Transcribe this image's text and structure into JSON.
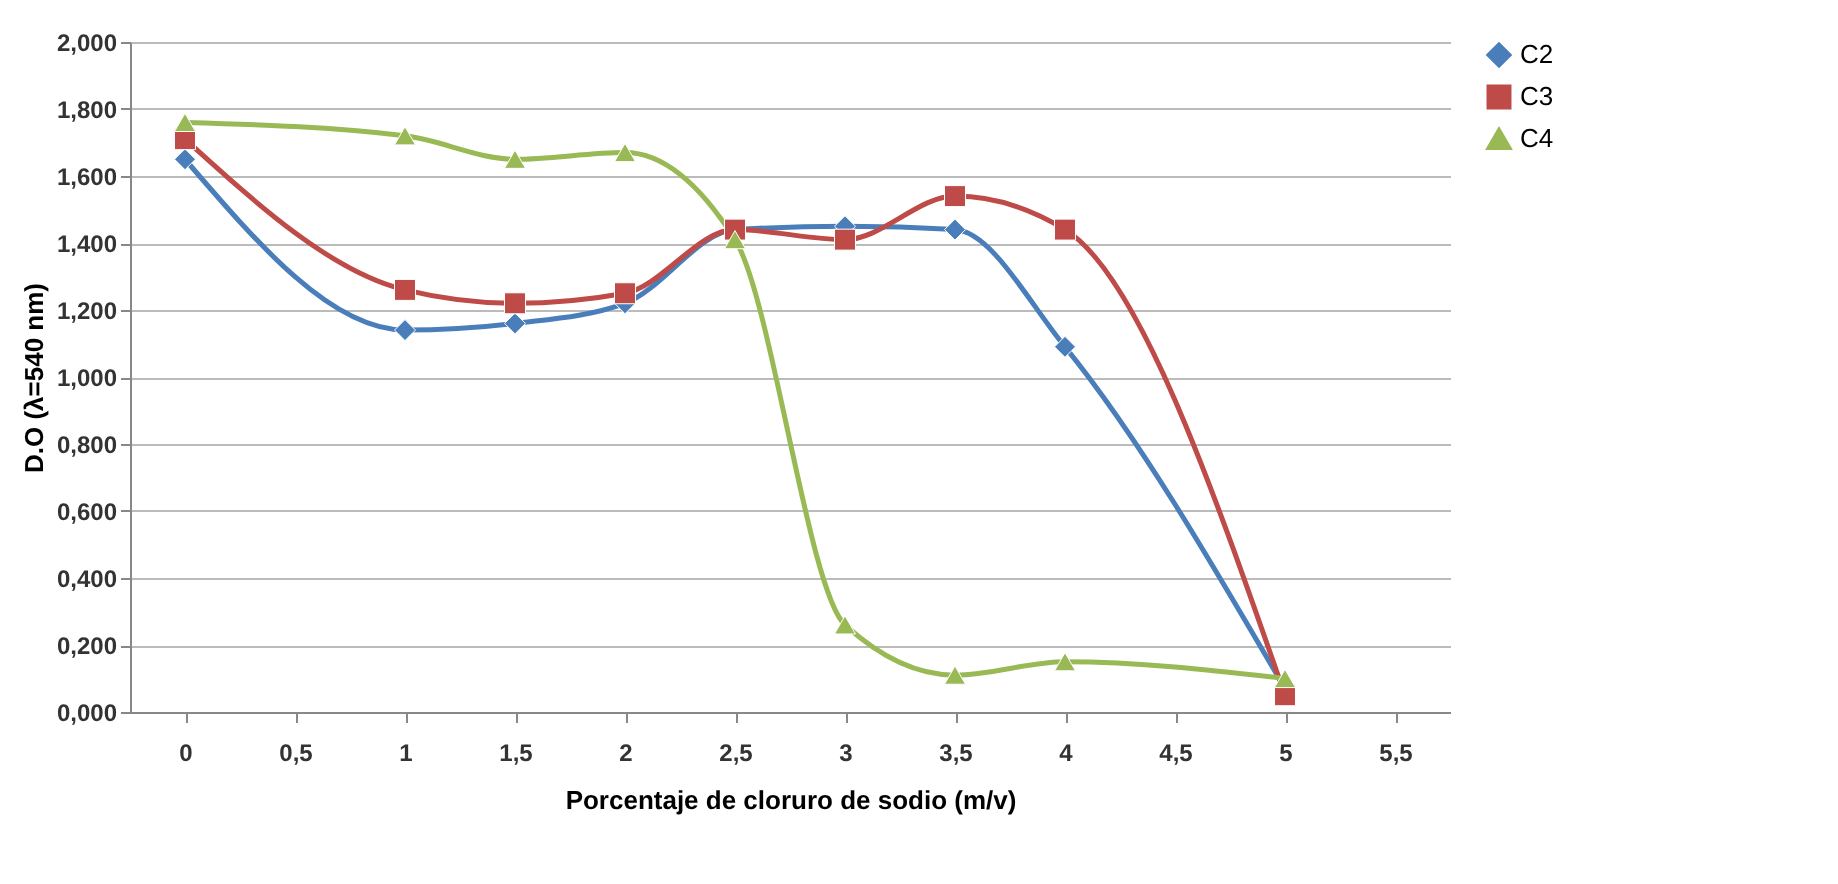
{
  "chart_data": {
    "type": "line",
    "xlabel": "Porcentaje de cloruro de sodio (m/v)",
    "ylabel": "D.O (λ=540 nm)",
    "x": [
      0,
      1,
      1.5,
      2,
      2.5,
      3,
      3.5,
      4,
      5
    ],
    "series": [
      {
        "name": "C2",
        "color": "#4a7ebb",
        "marker": "diamond",
        "values": [
          1.65,
          1.14,
          1.16,
          1.22,
          1.44,
          1.45,
          1.44,
          1.09,
          0.07
        ]
      },
      {
        "name": "C3",
        "color": "#be4b48",
        "marker": "square",
        "values": [
          1.71,
          1.26,
          1.22,
          1.25,
          1.44,
          1.41,
          1.54,
          1.44,
          0.05
        ]
      },
      {
        "name": "C4",
        "color": "#98b954",
        "marker": "triangle",
        "values": [
          1.76,
          1.72,
          1.65,
          1.67,
          1.41,
          0.26,
          0.11,
          0.15,
          0.1
        ]
      }
    ],
    "xlim": [
      -0.25,
      5.75
    ],
    "xticks": [
      0,
      {
        "value": 0.5,
        "label": "0,5"
      },
      1,
      {
        "value": 1.5,
        "label": "1,5"
      },
      2,
      {
        "value": 2.5,
        "label": "2,5"
      },
      3,
      {
        "value": 3.5,
        "label": "3,5"
      },
      4,
      {
        "value": 4.5,
        "label": "4,5"
      },
      5,
      {
        "value": 5.5,
        "label": "5,5"
      }
    ],
    "ylim": [
      0,
      2
    ],
    "yticks": [
      {
        "value": 0,
        "label": "0,000"
      },
      {
        "value": 0.2,
        "label": "0,200"
      },
      {
        "value": 0.4,
        "label": "0,400"
      },
      {
        "value": 0.6,
        "label": "0,600"
      },
      {
        "value": 0.8,
        "label": "0,800"
      },
      {
        "value": 1,
        "label": "1,000"
      },
      {
        "value": 1.2,
        "label": "1,200"
      },
      {
        "value": 1.4,
        "label": "1,400"
      },
      {
        "value": 1.6,
        "label": "1,600"
      },
      {
        "value": 1.8,
        "label": "1,800"
      },
      {
        "value": 2,
        "label": "2,000"
      }
    ],
    "grid": "y",
    "legend": "right",
    "line_style": "solid"
  }
}
